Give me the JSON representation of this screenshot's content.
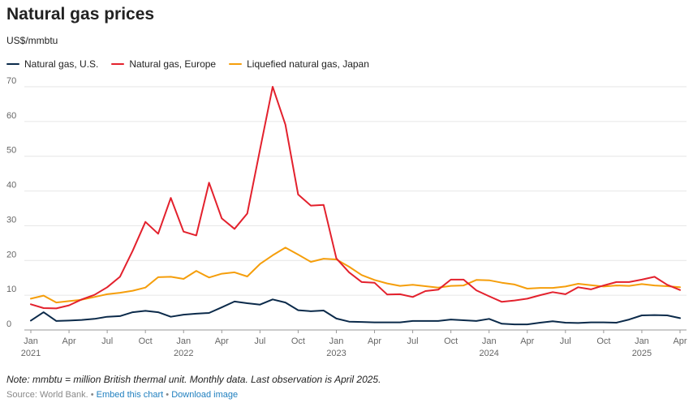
{
  "title": "Natural gas prices",
  "subtitle": "US$/mmbtu",
  "note": "Note: mmbtu = million British thermal unit. Monthly data. Last observation is April 2025.",
  "footer": {
    "source": "Source: World Bank.",
    "separator": "•",
    "embed_label": "Embed this chart",
    "download_label": "Download image"
  },
  "chart_data": {
    "type": "line",
    "title": "Natural gas prices",
    "ylabel": "US$/mmbtu",
    "xlabel": "",
    "ylim": [
      0,
      70
    ],
    "yticks": [
      0,
      10,
      20,
      30,
      40,
      50,
      60,
      70
    ],
    "grid": true,
    "legend_position": "top-left",
    "x_start": "2021-01",
    "x_end": "2025-04",
    "x_ticks": [
      {
        "month_index": 0,
        "label": "Jan",
        "year": "2021"
      },
      {
        "month_index": 3,
        "label": "Apr",
        "year": ""
      },
      {
        "month_index": 6,
        "label": "Jul",
        "year": ""
      },
      {
        "month_index": 9,
        "label": "Oct",
        "year": ""
      },
      {
        "month_index": 12,
        "label": "Jan",
        "year": "2022"
      },
      {
        "month_index": 15,
        "label": "Apr",
        "year": ""
      },
      {
        "month_index": 18,
        "label": "Jul",
        "year": ""
      },
      {
        "month_index": 21,
        "label": "Oct",
        "year": ""
      },
      {
        "month_index": 24,
        "label": "Jan",
        "year": "2023"
      },
      {
        "month_index": 27,
        "label": "Apr",
        "year": ""
      },
      {
        "month_index": 30,
        "label": "Jul",
        "year": ""
      },
      {
        "month_index": 33,
        "label": "Oct",
        "year": ""
      },
      {
        "month_index": 36,
        "label": "Jan",
        "year": "2024"
      },
      {
        "month_index": 39,
        "label": "Apr",
        "year": ""
      },
      {
        "month_index": 42,
        "label": "Jul",
        "year": ""
      },
      {
        "month_index": 45,
        "label": "Oct",
        "year": ""
      },
      {
        "month_index": 48,
        "label": "Jan",
        "year": "2025"
      },
      {
        "month_index": 51,
        "label": "Apr",
        "year": ""
      }
    ],
    "series": [
      {
        "name": "Natural gas, U.S.",
        "color": "#0b2a4a",
        "values": [
          2.7,
          5.1,
          2.6,
          2.7,
          2.9,
          3.2,
          3.8,
          4.0,
          5.1,
          5.5,
          5.1,
          3.8,
          4.4,
          4.7,
          4.9,
          6.5,
          8.2,
          7.7,
          7.3,
          8.8,
          7.9,
          5.7,
          5.4,
          5.6,
          3.3,
          2.4,
          2.3,
          2.2,
          2.2,
          2.2,
          2.6,
          2.6,
          2.6,
          3.0,
          2.8,
          2.6,
          3.2,
          1.8,
          1.6,
          1.6,
          2.1,
          2.5,
          2.1,
          2.0,
          2.2,
          2.2,
          2.1,
          3.0,
          4.2,
          4.3,
          4.2,
          3.4
        ]
      },
      {
        "name": "Natural gas, Europe",
        "color": "#e3212d",
        "values": [
          7.4,
          6.3,
          6.2,
          7.1,
          8.8,
          10.1,
          12.3,
          15.3,
          22.8,
          31.1,
          27.7,
          38.0,
          28.3,
          27.2,
          42.4,
          32.1,
          29.1,
          33.5,
          51.9,
          70.0,
          59.1,
          39.0,
          35.8,
          36.0,
          20.6,
          16.6,
          13.8,
          13.6,
          10.2,
          10.3,
          9.5,
          11.2,
          11.6,
          14.5,
          14.5,
          11.4,
          9.7,
          8.1,
          8.5,
          9.0,
          10.0,
          10.9,
          10.3,
          12.3,
          11.7,
          12.8,
          13.8,
          13.8,
          14.5,
          15.3,
          13.0,
          11.5
        ]
      },
      {
        "name": "Liquefied natural gas, Japan",
        "color": "#f59e0b",
        "values": [
          9.0,
          9.9,
          7.9,
          8.3,
          8.7,
          9.5,
          10.3,
          10.7,
          11.3,
          12.2,
          15.2,
          15.3,
          14.7,
          17.0,
          15.1,
          16.2,
          16.6,
          15.4,
          19.0,
          21.5,
          23.7,
          21.7,
          19.6,
          20.5,
          20.3,
          18.2,
          15.8,
          14.4,
          13.4,
          12.7,
          13.0,
          12.6,
          12.2,
          12.7,
          12.8,
          14.4,
          14.3,
          13.6,
          13.1,
          11.9,
          12.1,
          12.1,
          12.5,
          13.3,
          12.9,
          12.5,
          12.8,
          12.7,
          13.2,
          12.8,
          12.6,
          12.3
        ]
      }
    ]
  }
}
